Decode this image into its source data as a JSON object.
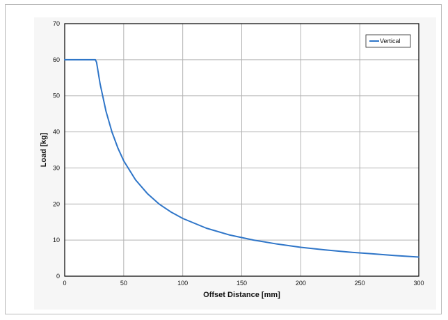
{
  "chart_data": {
    "type": "line",
    "title": "",
    "xlabel": "Offset Distance [mm]",
    "ylabel": "Load [kg]",
    "xlim": [
      0,
      300
    ],
    "ylim": [
      0,
      70
    ],
    "xticks": [
      0,
      50,
      100,
      150,
      200,
      250,
      300
    ],
    "yticks": [
      0,
      10,
      20,
      30,
      40,
      50,
      60,
      70
    ],
    "grid": true,
    "legend_position": "top-right",
    "series": [
      {
        "name": "Vertical",
        "color": "#2e75c8",
        "x": [
          0,
          10,
          20,
          26,
          27,
          30,
          35,
          40,
          45,
          50,
          60,
          70,
          80,
          90,
          100,
          120,
          140,
          160,
          180,
          200,
          220,
          240,
          260,
          280,
          300
        ],
        "y": [
          60,
          60,
          60,
          60,
          59.3,
          53.3,
          45.7,
          40.0,
          35.6,
          32.0,
          26.7,
          22.9,
          20.0,
          17.8,
          16.0,
          13.3,
          11.4,
          10.0,
          8.9,
          8.0,
          7.3,
          6.7,
          6.2,
          5.7,
          5.3
        ]
      }
    ]
  }
}
